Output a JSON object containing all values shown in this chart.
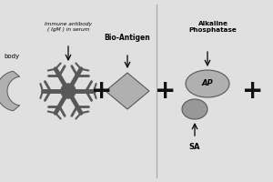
{
  "bg_color": "#e0e0e0",
  "gray_dark": "#585858",
  "gray_medium": "#787878",
  "gray_light": "#989898",
  "gray_lighter": "#b0b0b0",
  "text_color": "#000000",
  "divider_color": "#aaaaaa",
  "plus_color": "#111111",
  "labels": {
    "antibody_partial": "body",
    "immune_antibody": "Immune antibody\n( IgM ) in serum",
    "bio_antigen": "Bio-Antigen",
    "alkaline_phosphatase": "Alkaline\nPhosphatase",
    "sa_label": "SA",
    "ap_label": "AP"
  }
}
